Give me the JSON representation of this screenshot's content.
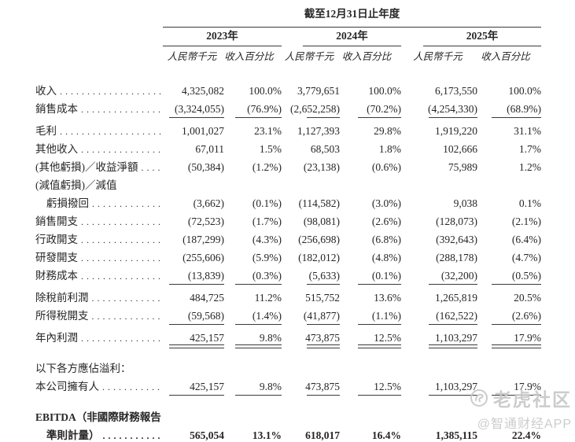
{
  "header": {
    "period_title": "截至12月31日止年度",
    "years": [
      "2023年",
      "2024年",
      "2025年"
    ],
    "sub_headers": {
      "amount": "人民幣千元",
      "percent": "收入百分比"
    }
  },
  "table": {
    "rows": [
      {
        "type": "data",
        "label": "收入",
        "dots": true,
        "values": [
          "4,325,082",
          "100.0%",
          "3,779,651",
          "100.0%",
          "6,173,550",
          "100.0%"
        ]
      },
      {
        "type": "data",
        "label": "銷售成本",
        "dots": true,
        "values": [
          "(3,324,055)",
          "(76.9%)",
          "(2,652,258)",
          "(70.2%)",
          "(4,254,330)",
          "(68.9%)"
        ]
      },
      {
        "type": "rule",
        "style": "single"
      },
      {
        "type": "data",
        "label": "毛利",
        "dots": true,
        "values": [
          "1,001,027",
          "23.1%",
          "1,127,393",
          "29.8%",
          "1,919,220",
          "31.1%"
        ]
      },
      {
        "type": "data",
        "label": "其他收入",
        "dots": true,
        "values": [
          "67,011",
          "1.5%",
          "68,503",
          "1.8%",
          "102,666",
          "1.7%"
        ]
      },
      {
        "type": "data",
        "label": "(其他虧損)／收益淨額",
        "dots": true,
        "values": [
          "(50,384)",
          "(1.2%)",
          "(23,138)",
          "(0.6%)",
          "75,989",
          "1.2%"
        ]
      },
      {
        "type": "data",
        "label": "(減值虧損)／減值",
        "dots": false,
        "values": null
      },
      {
        "type": "data",
        "label": "虧損撥回",
        "indent": true,
        "dots": true,
        "values": [
          "(3,662)",
          "(0.1%)",
          "(114,582)",
          "(3.0%)",
          "9,038",
          "0.1%"
        ]
      },
      {
        "type": "data",
        "label": "銷售開支",
        "dots": true,
        "values": [
          "(72,523)",
          "(1.7%)",
          "(98,081)",
          "(2.6%)",
          "(128,073)",
          "(2.1%)"
        ]
      },
      {
        "type": "data",
        "label": "行政開支",
        "dots": true,
        "values": [
          "(187,299)",
          "(4.3%)",
          "(256,698)",
          "(6.8%)",
          "(392,643)",
          "(6.4%)"
        ]
      },
      {
        "type": "data",
        "label": "研發開支",
        "dots": true,
        "values": [
          "(255,606)",
          "(5.9%)",
          "(182,012)",
          "(4.8%)",
          "(288,178)",
          "(4.7%)"
        ]
      },
      {
        "type": "data",
        "label": "財務成本",
        "dots": true,
        "values": [
          "(13,839)",
          "(0.3%)",
          "(5,633)",
          "(0.1%)",
          "(32,200)",
          "(0.5%)"
        ]
      },
      {
        "type": "rule",
        "style": "single"
      },
      {
        "type": "data",
        "label": "除稅前利潤",
        "dots": true,
        "values": [
          "484,725",
          "11.2%",
          "515,752",
          "13.6%",
          "1,265,819",
          "20.5%"
        ]
      },
      {
        "type": "data",
        "label": "所得稅開支",
        "dots": true,
        "values": [
          "(59,568)",
          "(1.4%)",
          "(41,877)",
          "(1.1%)",
          "(162,522)",
          "(2.6%)"
        ]
      },
      {
        "type": "rule",
        "style": "single"
      },
      {
        "type": "data",
        "label": "年內利潤",
        "dots": true,
        "values": [
          "425,157",
          "9.8%",
          "473,875",
          "12.5%",
          "1,103,297",
          "17.9%"
        ]
      },
      {
        "type": "rule",
        "style": "double"
      },
      {
        "type": "data",
        "label": "以下各方應佔溢利：",
        "dots": false,
        "values": null,
        "gap_above": true
      },
      {
        "type": "data",
        "label": "本公司擁有人",
        "dots": true,
        "values": [
          "425,157",
          "9.8%",
          "473,875",
          "12.5%",
          "1,103,297",
          "17.9%"
        ]
      },
      {
        "type": "rule",
        "style": "single"
      },
      {
        "type": "data",
        "label": "EBITDA（非國際財務報告",
        "dots": false,
        "bold": true,
        "values": null,
        "gap_above": true
      },
      {
        "type": "data",
        "label": "準則計量）",
        "indent": true,
        "bold": true,
        "dots": true,
        "values": [
          "565,054",
          "13.1%",
          "618,017",
          "16.4%",
          "1,385,115",
          "22.4%"
        ]
      }
    ]
  },
  "watermark": {
    "brand": "老虎社区",
    "source": "@智通财经APP"
  },
  "colors": {
    "text": "#262626",
    "rule": "#3a3a3a",
    "watermark": "#c8c8c8",
    "background": "#ffffff"
  }
}
